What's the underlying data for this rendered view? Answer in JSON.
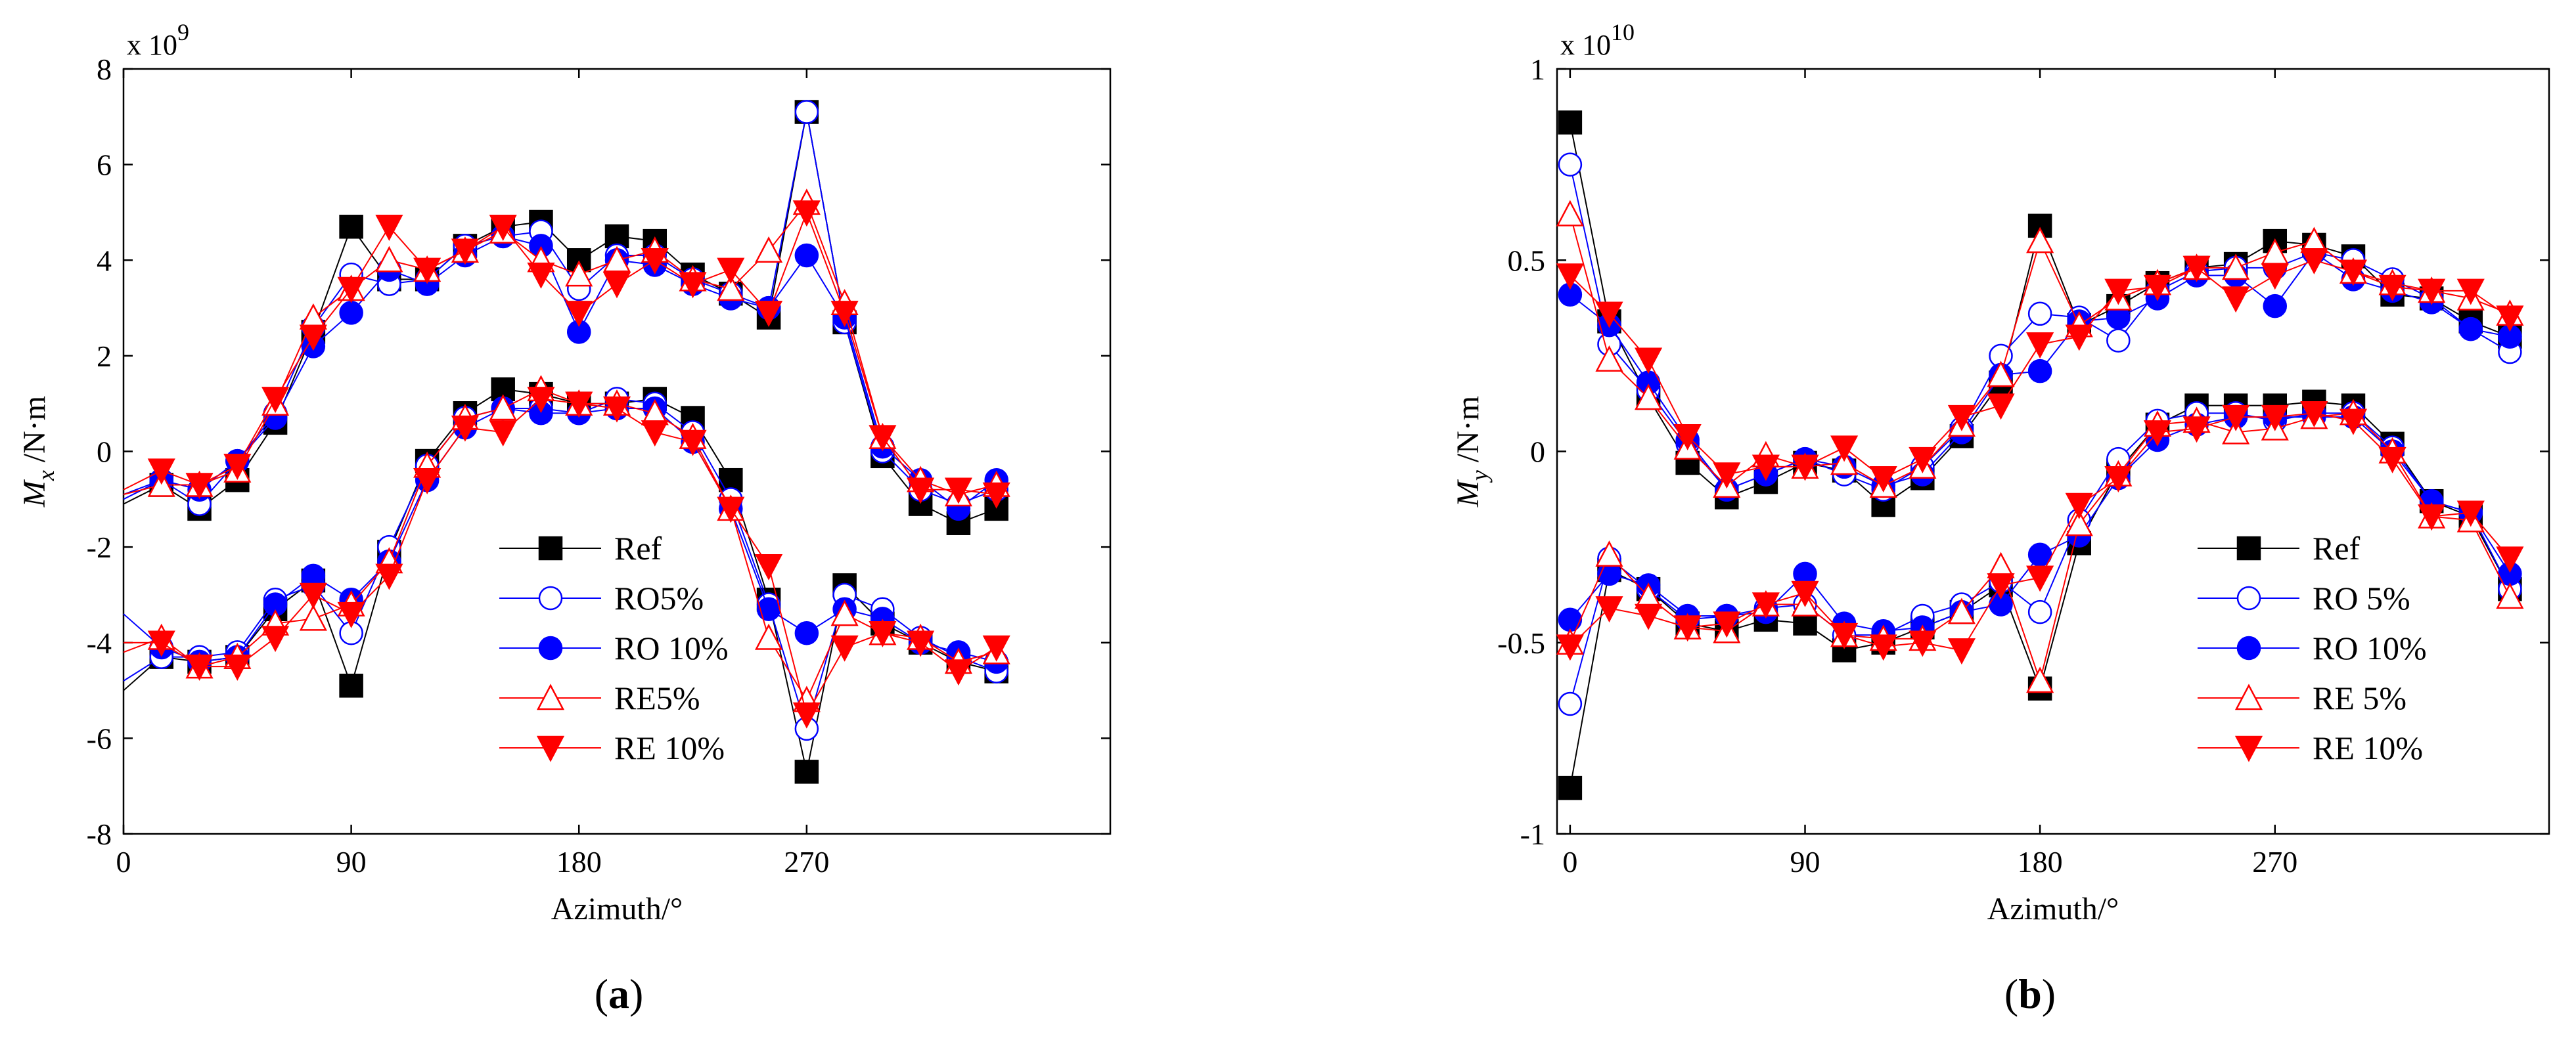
{
  "panels": [
    {
      "caption_open": "(",
      "caption_letter": "a",
      "caption_close": ")"
    },
    {
      "caption_open": "(",
      "caption_letter": "b",
      "caption_close": ")"
    }
  ],
  "chart_data": [
    {
      "type": "line",
      "panel": "a",
      "xlabel": "Azimuth/°",
      "ylabel_main": "M",
      "ylabel_sub": "x",
      "ylabel_unit": " /N·m",
      "exponent_base": "x 10",
      "exponent_power": "9",
      "xlim": [
        0,
        390
      ],
      "ylim": [
        -8,
        8
      ],
      "xticks": [
        0,
        90,
        180,
        270
      ],
      "yticks": [
        -8,
        -6,
        -4,
        -2,
        0,
        2,
        4,
        6,
        8
      ],
      "legend_position": "bottom-center",
      "x": [
        15,
        30,
        45,
        60,
        75,
        90,
        105,
        120,
        135,
        150,
        165,
        180,
        195,
        210,
        225,
        240,
        255,
        270,
        285,
        300,
        315,
        330,
        345
      ],
      "series": [
        {
          "name": "Ref",
          "color": "#000000",
          "marker": "square",
          "fill": true,
          "start": [
            -1.1,
            -5.0
          ],
          "upper": [
            -0.7,
            -1.2,
            -0.6,
            0.6,
            2.5,
            4.7,
            3.6,
            3.6,
            4.3,
            4.7,
            4.8,
            4.0,
            4.5,
            4.4,
            3.7,
            3.3,
            2.8,
            7.1,
            2.7,
            -0.1,
            -1.1,
            -1.5,
            -1.2
          ],
          "lower": [
            -4.3,
            -4.4,
            -4.3,
            -3.3,
            -2.7,
            -4.9,
            -2.1,
            -0.2,
            0.8,
            1.3,
            1.2,
            1.0,
            1.0,
            1.1,
            0.7,
            -0.6,
            -3.1,
            -6.7,
            -2.8,
            -3.6,
            -4.0,
            -4.4,
            -4.6
          ]
        },
        {
          "name": "RO5%",
          "color": "#0000ff",
          "marker": "circle",
          "fill": false,
          "start": [
            -1.0,
            -4.8
          ],
          "upper": [
            -0.6,
            -1.1,
            -0.2,
            0.8,
            2.6,
            3.7,
            3.5,
            3.6,
            4.3,
            4.5,
            4.6,
            3.4,
            4.1,
            4.1,
            3.6,
            3.3,
            3.0,
            7.1,
            2.7,
            0.0,
            -0.8,
            -1.1,
            -0.8
          ],
          "lower": [
            -4.3,
            -4.3,
            -4.2,
            -3.1,
            -2.8,
            -3.8,
            -2.0,
            -0.3,
            0.7,
            0.9,
            0.9,
            0.8,
            1.1,
            1.0,
            0.4,
            -1.0,
            -3.2,
            -5.8,
            -3.0,
            -3.3,
            -3.9,
            -4.3,
            -4.6
          ]
        },
        {
          "name": "RO 10%",
          "color": "#0000ff",
          "marker": "circle",
          "fill": true,
          "start": [
            -0.9,
            -3.4
          ],
          "upper": [
            -0.6,
            -0.8,
            -0.2,
            0.7,
            2.2,
            2.9,
            3.8,
            3.5,
            4.1,
            4.5,
            4.3,
            2.5,
            4.0,
            3.9,
            3.5,
            3.2,
            3.0,
            4.1,
            2.8,
            0.1,
            -0.6,
            -1.2,
            -0.6
          ],
          "lower": [
            -4.1,
            -4.4,
            -4.3,
            -3.2,
            -2.6,
            -3.1,
            -2.3,
            -0.6,
            0.5,
            0.9,
            0.8,
            0.8,
            0.9,
            0.9,
            0.2,
            -1.2,
            -3.3,
            -3.8,
            -3.3,
            -3.5,
            -4.0,
            -4.2,
            -4.4
          ]
        },
        {
          "name": "RE5%",
          "color": "#ff0000",
          "marker": "triangle-up",
          "fill": false,
          "start": [
            -0.9,
            -4.2
          ],
          "upper": [
            -0.7,
            -0.7,
            -0.4,
            1.0,
            2.8,
            3.4,
            4.0,
            3.8,
            4.2,
            4.6,
            4.0,
            3.7,
            4.0,
            4.2,
            3.6,
            3.4,
            4.2,
            5.2,
            3.1,
            0.3,
            -0.6,
            -0.9,
            -0.7
          ],
          "lower": [
            -3.9,
            -4.5,
            -4.3,
            -3.6,
            -3.5,
            -3.2,
            -2.3,
            -0.3,
            0.7,
            0.9,
            1.3,
            1.0,
            1.0,
            0.8,
            0.3,
            -1.2,
            -3.9,
            -5.2,
            -3.4,
            -3.8,
            -3.9,
            -4.4,
            -4.2
          ]
        },
        {
          "name": "RE 10%",
          "color": "#ff0000",
          "marker": "triangle-down",
          "fill": true,
          "start": [
            -0.8,
            -4.0
          ],
          "upper": [
            -0.4,
            -0.7,
            -0.3,
            1.1,
            2.4,
            3.4,
            4.7,
            3.8,
            4.2,
            4.7,
            3.7,
            2.9,
            3.5,
            4.0,
            3.5,
            3.8,
            2.9,
            5.0,
            2.9,
            0.3,
            -0.8,
            -0.8,
            -0.9
          ],
          "lower": [
            -4.0,
            -4.5,
            -4.5,
            -3.9,
            -3.0,
            -3.4,
            -2.6,
            -0.6,
            0.5,
            0.4,
            1.1,
            1.0,
            0.9,
            0.4,
            0.2,
            -1.2,
            -2.4,
            -5.5,
            -4.1,
            -3.8,
            -4.0,
            -4.6,
            -4.1
          ]
        }
      ]
    },
    {
      "type": "line",
      "panel": "b",
      "xlabel": "Azimuth/°",
      "ylabel_main": "M",
      "ylabel_sub": "y",
      "ylabel_unit": " /N·m",
      "exponent_base": "x 10",
      "exponent_power": "10",
      "xlim": [
        -5,
        375
      ],
      "ylim": [
        -1,
        1
      ],
      "xticks": [
        0,
        90,
        180,
        270
      ],
      "yticks": [
        -1,
        -0.5,
        0,
        0.5,
        1
      ],
      "ytick_labels": [
        "-1",
        "-0.5",
        "0",
        "0.5",
        "1"
      ],
      "legend_position": "bottom-right",
      "x": [
        0,
        15,
        30,
        45,
        60,
        75,
        90,
        105,
        120,
        135,
        150,
        165,
        180,
        195,
        210,
        225,
        240,
        255,
        270,
        285,
        300,
        315,
        330,
        345,
        360
      ],
      "series": [
        {
          "name": "Ref",
          "color": "#000000",
          "marker": "square",
          "fill": true,
          "upper": [
            0.86,
            0.34,
            0.14,
            -0.03,
            -0.12,
            -0.08,
            -0.03,
            -0.05,
            -0.14,
            -0.07,
            0.04,
            0.18,
            0.59,
            0.33,
            0.38,
            0.44,
            0.48,
            0.49,
            0.55,
            0.54,
            0.51,
            0.41,
            0.4,
            0.34,
            0.3
          ],
          "lower": [
            -0.88,
            -0.31,
            -0.36,
            -0.45,
            -0.47,
            -0.44,
            -0.45,
            -0.52,
            -0.5,
            -0.46,
            -0.42,
            -0.35,
            -0.62,
            -0.24,
            -0.05,
            0.07,
            0.12,
            0.12,
            0.12,
            0.13,
            0.12,
            0.02,
            -0.13,
            -0.17,
            -0.36
          ]
        },
        {
          "name": "RO 5%",
          "color": "#0000ff",
          "marker": "circle",
          "fill": false,
          "upper": [
            0.75,
            0.28,
            0.16,
            0.02,
            -0.1,
            -0.06,
            -0.02,
            -0.06,
            -0.1,
            -0.04,
            0.06,
            0.25,
            0.36,
            0.35,
            0.29,
            0.42,
            0.47,
            0.48,
            0.48,
            0.52,
            0.5,
            0.45,
            0.4,
            0.32,
            0.26
          ],
          "lower": [
            -0.66,
            -0.28,
            -0.36,
            -0.44,
            -0.43,
            -0.41,
            -0.4,
            -0.48,
            -0.48,
            -0.43,
            -0.4,
            -0.34,
            -0.42,
            -0.18,
            -0.02,
            0.08,
            0.1,
            0.1,
            0.08,
            0.1,
            0.1,
            0.01,
            -0.13,
            -0.16,
            -0.36
          ]
        },
        {
          "name": "RO 10%",
          "color": "#0000ff",
          "marker": "circle",
          "fill": true,
          "upper": [
            0.41,
            0.33,
            0.18,
            0.03,
            -0.1,
            -0.06,
            -0.02,
            -0.04,
            -0.09,
            -0.06,
            0.05,
            0.2,
            0.21,
            0.34,
            0.35,
            0.4,
            0.46,
            0.46,
            0.38,
            0.52,
            0.45,
            0.42,
            0.39,
            0.32,
            0.3
          ],
          "lower": [
            -0.44,
            -0.32,
            -0.35,
            -0.43,
            -0.43,
            -0.42,
            -0.32,
            -0.45,
            -0.47,
            -0.46,
            -0.42,
            -0.4,
            -0.27,
            -0.22,
            -0.07,
            0.03,
            0.07,
            0.09,
            0.09,
            0.09,
            0.09,
            0.0,
            -0.13,
            -0.16,
            -0.32
          ]
        },
        {
          "name": "RE 5%",
          "color": "#ff0000",
          "marker": "triangle-up",
          "fill": false,
          "upper": [
            0.62,
            0.24,
            0.14,
            0.01,
            -0.09,
            -0.01,
            -0.04,
            -0.03,
            -0.09,
            -0.04,
            0.07,
            0.2,
            0.55,
            0.33,
            0.4,
            0.44,
            0.48,
            0.48,
            0.52,
            0.55,
            0.47,
            0.44,
            0.42,
            0.4,
            0.36
          ],
          "lower": [
            -0.5,
            -0.27,
            -0.38,
            -0.46,
            -0.47,
            -0.4,
            -0.4,
            -0.48,
            -0.49,
            -0.49,
            -0.42,
            -0.3,
            -0.6,
            -0.19,
            -0.06,
            0.07,
            0.08,
            0.05,
            0.06,
            0.09,
            0.1,
            0.0,
            -0.17,
            -0.18,
            -0.38
          ]
        },
        {
          "name": "RE 10%",
          "color": "#ff0000",
          "marker": "triangle-down",
          "fill": true,
          "upper": [
            0.46,
            0.36,
            0.24,
            0.04,
            -0.06,
            -0.04,
            -0.04,
            0.01,
            -0.07,
            -0.02,
            0.09,
            0.12,
            0.28,
            0.3,
            0.42,
            0.43,
            0.48,
            0.4,
            0.46,
            0.5,
            0.47,
            0.43,
            0.42,
            0.42,
            0.35
          ],
          "lower": [
            -0.51,
            -0.41,
            -0.43,
            -0.46,
            -0.45,
            -0.4,
            -0.37,
            -0.48,
            -0.51,
            -0.5,
            -0.52,
            -0.35,
            -0.33,
            -0.14,
            -0.07,
            0.05,
            0.06,
            0.09,
            0.09,
            0.1,
            0.08,
            -0.02,
            -0.17,
            -0.16,
            -0.28
          ]
        }
      ]
    }
  ]
}
